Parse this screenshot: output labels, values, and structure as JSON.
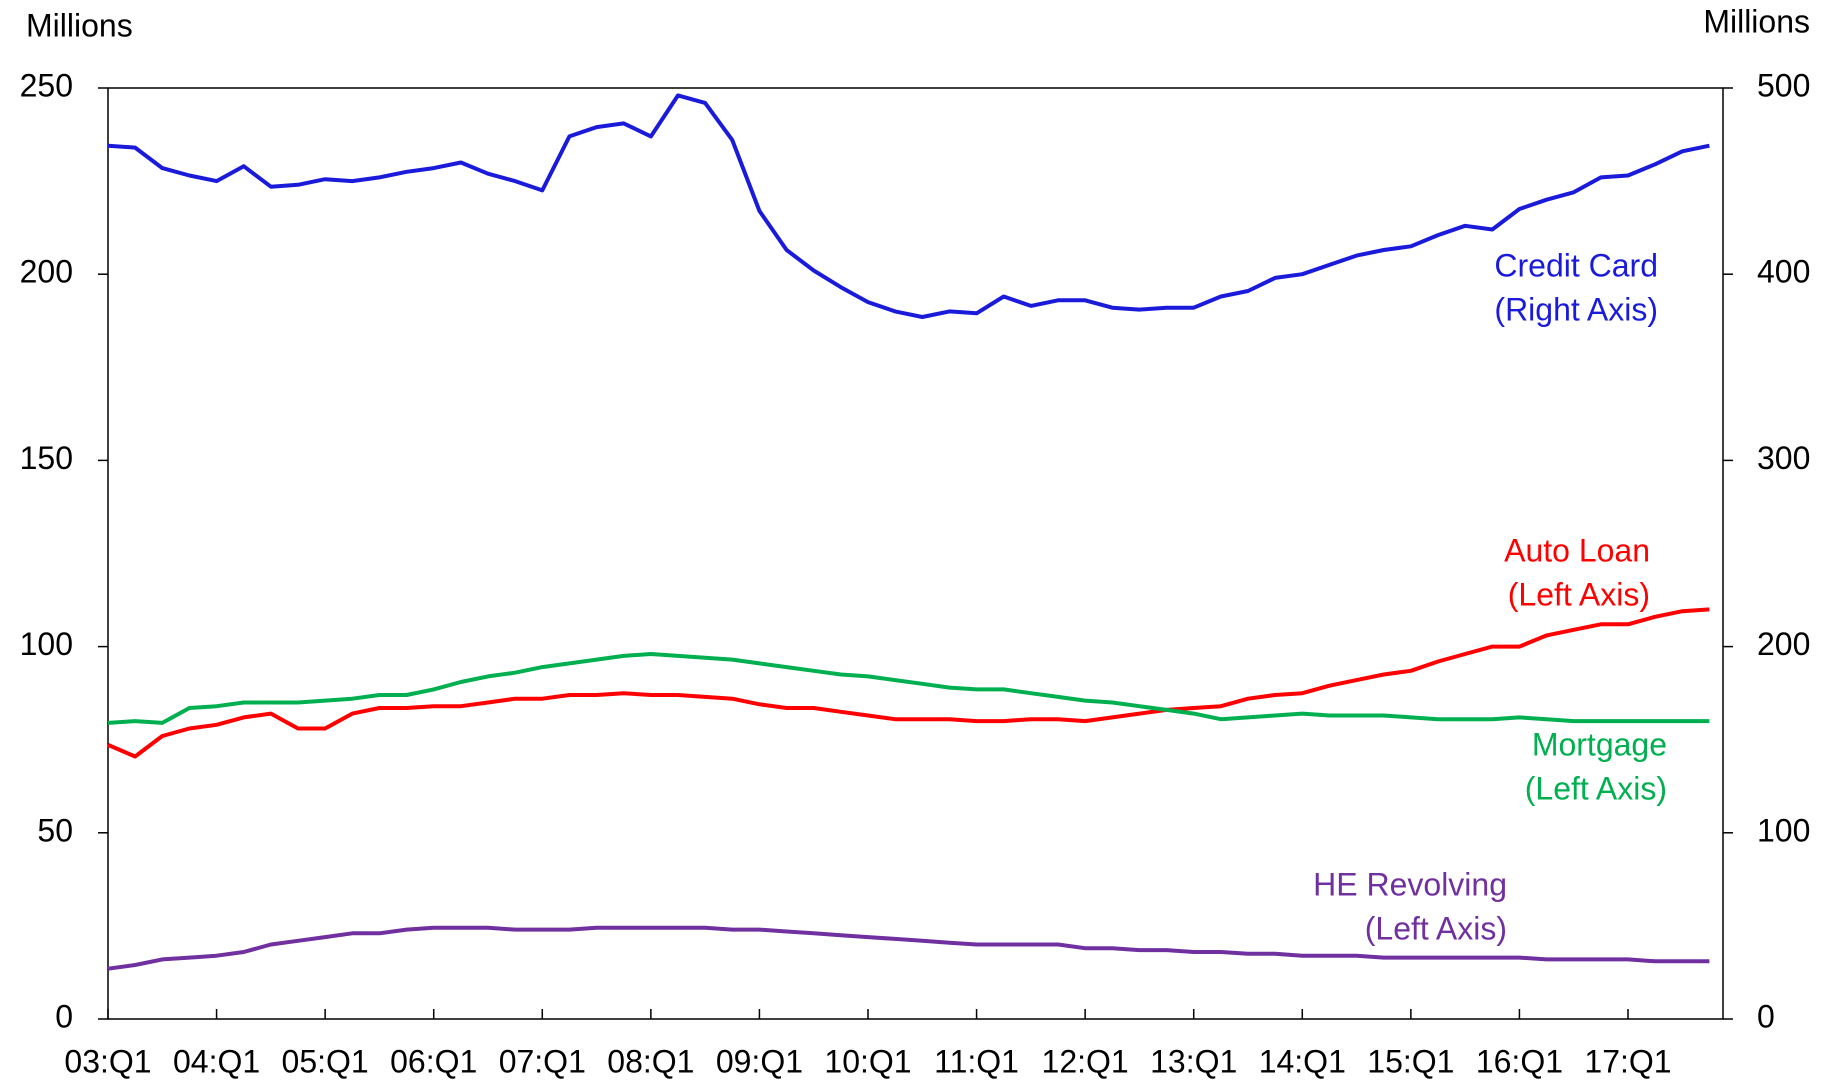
{
  "chart_data": {
    "type": "line",
    "y_label": "Millions",
    "y2_label": "Millions",
    "categories": [
      "03:Q1",
      null,
      null,
      null,
      "04:Q1",
      null,
      null,
      null,
      "05:Q1",
      null,
      null,
      null,
      "06:Q1",
      null,
      null,
      null,
      "07:Q1",
      null,
      null,
      null,
      "08:Q1",
      null,
      null,
      null,
      "09:Q1",
      null,
      null,
      null,
      "10:Q1",
      null,
      null,
      null,
      "11:Q1",
      null,
      null,
      null,
      "12:Q1",
      null,
      null,
      null,
      "13:Q1",
      null,
      null,
      null,
      "14:Q1",
      null,
      null,
      null,
      "15:Q1",
      null,
      null,
      null,
      "16:Q1",
      null,
      null,
      null,
      "17:Q1",
      null,
      null,
      null
    ],
    "ylim": [
      0,
      250
    ],
    "yticks": [
      0,
      50,
      100,
      150,
      200,
      250
    ],
    "y2lim": [
      0,
      500
    ],
    "y2ticks": [
      0,
      100,
      200,
      300,
      400,
      500
    ],
    "series": [
      {
        "name": "Credit Card",
        "note": "(Right Axis)",
        "color": "#1a1adb",
        "axis": "y2",
        "values": [
          469,
          468,
          457,
          453,
          450,
          458,
          447,
          448,
          451,
          450,
          452,
          455,
          457,
          460,
          454,
          450,
          445,
          474,
          479,
          481,
          474,
          496,
          492,
          472,
          434,
          413,
          402,
          393,
          385,
          380,
          377,
          380,
          379,
          388,
          383,
          386,
          386,
          382,
          381,
          382,
          382,
          388,
          391,
          398,
          400,
          405,
          410,
          413,
          415,
          421,
          426,
          424,
          435,
          440,
          444,
          452,
          453,
          459,
          466,
          469
        ]
      },
      {
        "name": "Auto Loan",
        "note": "(Left Axis)",
        "color": "#ff0000",
        "values": [
          73.6,
          70.5,
          76,
          78,
          79,
          81,
          82,
          78,
          78,
          82,
          83.5,
          83.5,
          84,
          84,
          85,
          86,
          86,
          87,
          87,
          87.5,
          87,
          87,
          86.5,
          86,
          84.5,
          83.5,
          83.5,
          82.5,
          81.5,
          80.5,
          80.5,
          80.5,
          80,
          80,
          80.5,
          80.5,
          80,
          81,
          82,
          83,
          83.5,
          84,
          86,
          87,
          87.5,
          89.5,
          91,
          92.5,
          93.5,
          96,
          98,
          100,
          100,
          103,
          104.5,
          106,
          106,
          108,
          109.5,
          110
        ]
      },
      {
        "name": "Mortgage",
        "note": "(Left Axis)",
        "color": "#00b050",
        "values": [
          79.5,
          80,
          79.5,
          83.5,
          84,
          85,
          85,
          85,
          85.5,
          86,
          87,
          87,
          88.5,
          90.5,
          92,
          93,
          94.5,
          95.5,
          96.5,
          97.5,
          98,
          97.5,
          97,
          96.5,
          95.5,
          94.5,
          93.5,
          92.5,
          92,
          91,
          90,
          89,
          88.5,
          88.5,
          87.5,
          86.5,
          85.5,
          85,
          84,
          83,
          82,
          80.5,
          81,
          81.5,
          82,
          81.5,
          81.5,
          81.5,
          81,
          80.5,
          80.5,
          80.5,
          81,
          80.5,
          80,
          80,
          80,
          80,
          80,
          80
        ]
      },
      {
        "name": "HE Revolving",
        "note": "(Left Axis)",
        "color": "#7030a0",
        "values": [
          13.5,
          14.5,
          16,
          16.5,
          17,
          18,
          20,
          21,
          22,
          23,
          23,
          24,
          24.5,
          24.5,
          24.5,
          24,
          24,
          24,
          24.5,
          24.5,
          24.5,
          24.5,
          24.5,
          24,
          24,
          23.5,
          23,
          22.5,
          22,
          21.5,
          21,
          20.5,
          20,
          20,
          20,
          20,
          19,
          19,
          18.5,
          18.5,
          18,
          18,
          17.5,
          17.5,
          17,
          17,
          17,
          16.5,
          16.5,
          16.5,
          16.5,
          16.5,
          16.5,
          16,
          16,
          16,
          16,
          15.5,
          15.5,
          15.5
        ]
      }
    ]
  }
}
